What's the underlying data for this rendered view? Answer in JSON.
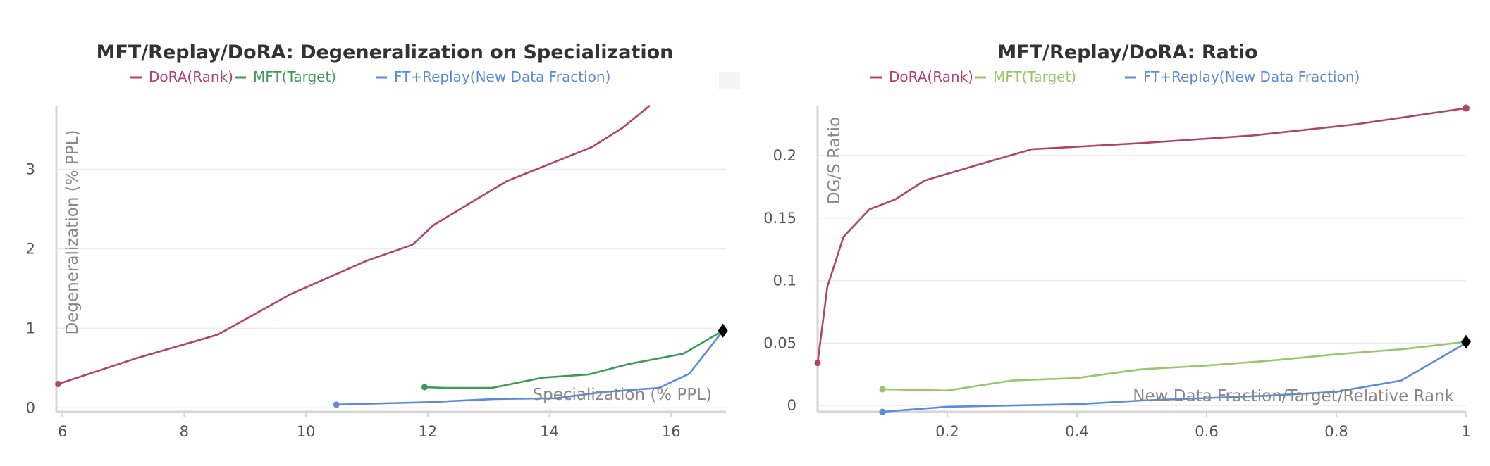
{
  "colors": {
    "dora": "#B0436A",
    "mft_left": "#3E9A57",
    "mft_right": "#98C76A",
    "replay": "#5B8BDB",
    "grid": "#ececec",
    "axis": "#d6d6d6",
    "marker": "#000000"
  },
  "chart_data": [
    {
      "type": "line",
      "title": "MFT/Replay/DoRA: Degeneralization on Specialization",
      "xlabel": "Specialization (% PPL)",
      "ylabel": "Degeneralization (% PPL)",
      "xlim": [
        5.9,
        16.9
      ],
      "ylim": [
        -0.05,
        3.8
      ],
      "xticks": [
        6,
        8,
        10,
        12,
        14,
        16
      ],
      "yticks": [
        0,
        1,
        2,
        3
      ],
      "grid": true,
      "legend_position": "top",
      "series": [
        {
          "name": "DoRA(Rank)",
          "color_key": "dora",
          "x": [
            5.93,
            7.2,
            8.55,
            9.75,
            11.0,
            11.75,
            12.1,
            13.3,
            14.7,
            15.2,
            15.65
          ],
          "y": [
            0.3,
            0.62,
            0.92,
            1.43,
            1.85,
            2.05,
            2.3,
            2.85,
            3.28,
            3.52,
            3.8
          ]
        },
        {
          "name": "MFT(Target)",
          "color_key": "mft_left",
          "x": [
            11.95,
            12.3,
            13.05,
            13.9,
            14.65,
            15.3,
            16.2,
            16.85
          ],
          "y": [
            0.26,
            0.25,
            0.25,
            0.38,
            0.42,
            0.55,
            0.68,
            0.97
          ]
        },
        {
          "name": "FT+Replay(New Data Fraction)",
          "color_key": "replay",
          "x": [
            10.5,
            12.0,
            13.1,
            14.1,
            14.9,
            15.8,
            16.3,
            16.85
          ],
          "y": [
            0.04,
            0.07,
            0.11,
            0.12,
            0.2,
            0.25,
            0.43,
            0.97
          ]
        }
      ]
    },
    {
      "type": "line",
      "title": "MFT/Replay/DoRA: Ratio",
      "xlabel": "New Data Fraction/Target/Relative Rank",
      "ylabel": "DG/S Ratio",
      "xlim": [
        0,
        1
      ],
      "ylim": [
        -0.005,
        0.24
      ],
      "xticks": [
        0.2,
        0.4,
        0.6,
        0.8,
        1
      ],
      "yticks": [
        0,
        0.05,
        0.1,
        0.15,
        0.2
      ],
      "grid": true,
      "legend_position": "top",
      "series": [
        {
          "name": "DoRA(Rank)",
          "color_key": "dora",
          "x": [
            0.0,
            0.015,
            0.04,
            0.08,
            0.12,
            0.165,
            0.25,
            0.33,
            0.5,
            0.67,
            0.83,
            1.0
          ],
          "y": [
            0.034,
            0.095,
            0.135,
            0.157,
            0.165,
            0.18,
            0.193,
            0.205,
            0.21,
            0.216,
            0.225,
            0.238
          ]
        },
        {
          "name": "MFT(Target)",
          "color_key": "mft_right",
          "x": [
            0.1,
            0.2,
            0.3,
            0.4,
            0.5,
            0.6,
            0.7,
            0.8,
            0.9,
            1.0
          ],
          "y": [
            0.013,
            0.012,
            0.02,
            0.022,
            0.029,
            0.032,
            0.036,
            0.041,
            0.045,
            0.051
          ]
        },
        {
          "name": "FT+Replay(New Data Fraction)",
          "color_key": "replay",
          "x": [
            0.1,
            0.2,
            0.3,
            0.4,
            0.5,
            0.6,
            0.7,
            0.8,
            0.9,
            1.0
          ],
          "y": [
            -0.005,
            -0.001,
            0.0,
            0.001,
            0.004,
            0.006,
            0.008,
            0.011,
            0.02,
            0.05
          ]
        }
      ]
    }
  ]
}
